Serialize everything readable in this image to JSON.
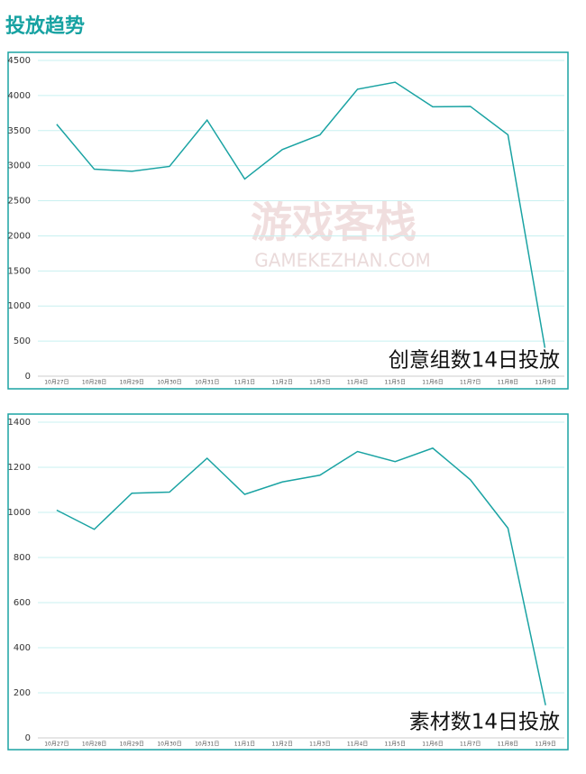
{
  "header": {
    "title": "投放趋势"
  },
  "watermark": {
    "name": "游戏客栈",
    "site": "GAMEKEZHAN.COM"
  },
  "chart_data": [
    {
      "type": "line",
      "annotation": "创意组数14日投放",
      "categories": [
        "10月27日",
        "10月28日",
        "10月29日",
        "10月30日",
        "10月31日",
        "11月1日",
        "11月2日",
        "11月3日",
        "11月4日",
        "11月5日",
        "11月6日",
        "11月7日",
        "11月8日",
        "11月9日"
      ],
      "series": [
        {
          "color": "#1aa3a3",
          "values": [
            3590,
            2950,
            2920,
            2990,
            3650,
            2810,
            3230,
            3440,
            4090,
            4190,
            3840,
            3845,
            3440,
            350
          ]
        }
      ],
      "ylim": [
        0,
        4500
      ],
      "yticks": [
        0,
        500,
        1000,
        1500,
        2000,
        2500,
        3000,
        3500,
        4000,
        4500
      ],
      "grid": true
    },
    {
      "type": "line",
      "annotation": "素材数14日投放",
      "categories": [
        "10月27日",
        "10月28日",
        "10月29日",
        "10月30日",
        "10月31日",
        "11月1日",
        "11月2日",
        "11月3日",
        "11月4日",
        "11月5日",
        "11月6日",
        "11月7日",
        "11月8日",
        "11月9日"
      ],
      "series": [
        {
          "color": "#1aa3a3",
          "values": [
            1010,
            925,
            1085,
            1090,
            1240,
            1080,
            1135,
            1165,
            1270,
            1225,
            1285,
            1145,
            930,
            145
          ]
        }
      ],
      "ylim": [
        0,
        1400
      ],
      "yticks": [
        0,
        200,
        400,
        600,
        800,
        1000,
        1200,
        1400
      ],
      "grid": true
    }
  ]
}
